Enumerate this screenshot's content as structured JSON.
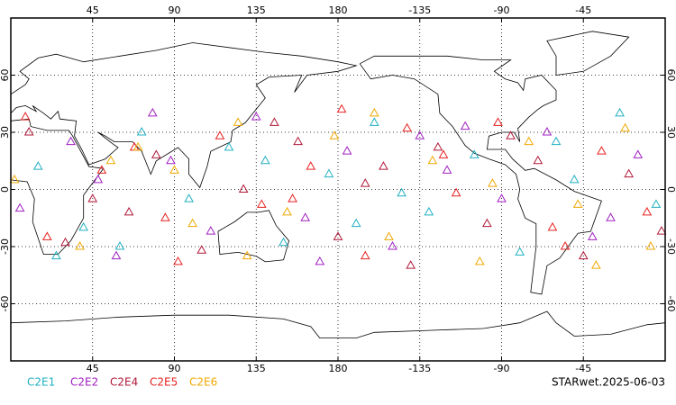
{
  "chart_data": {
    "type": "scatter",
    "xlim": [
      0,
      360
    ],
    "ylim": [
      -90,
      90
    ],
    "xticks": [
      45,
      90,
      135,
      180,
      {
        "value": 225,
        "label": "-135"
      },
      {
        "value": 270,
        "label": "-90"
      },
      {
        "value": 315,
        "label": "-45"
      }
    ],
    "yticks": [
      -60,
      -30,
      0,
      30,
      60
    ],
    "grid": true,
    "footer": "STARwet.2025-06-03",
    "series": [
      {
        "name": "C2E1",
        "color": "#20b0c0",
        "x": [
          15,
          40,
          72,
          98,
          120,
          150,
          175,
          200,
          230,
          255,
          280,
          310,
          335,
          355,
          60,
          140,
          215,
          300,
          25,
          190
        ],
        "y": [
          12,
          -20,
          30,
          -5,
          22,
          -28,
          8,
          35,
          -12,
          18,
          -33,
          5,
          40,
          -8,
          -30,
          15,
          -2,
          25,
          -35,
          -18
        ]
      },
      {
        "name": "C2E2",
        "color": "#a020c0",
        "x": [
          5,
          33,
          58,
          88,
          110,
          135,
          162,
          185,
          210,
          240,
          270,
          295,
          320,
          345,
          78,
          170,
          250,
          330,
          48,
          225
        ],
        "y": [
          -10,
          25,
          -35,
          15,
          -22,
          38,
          -15,
          20,
          -30,
          10,
          -5,
          30,
          -25,
          18,
          40,
          -38,
          33,
          -15,
          5,
          28
        ]
      },
      {
        "name": "C2E4",
        "color": "#b01838",
        "x": [
          10,
          45,
          80,
          105,
          128,
          158,
          180,
          205,
          235,
          262,
          290,
          315,
          340,
          358,
          65,
          145,
          220,
          275,
          30,
          195
        ],
        "y": [
          30,
          -5,
          18,
          -32,
          0,
          25,
          -25,
          12,
          22,
          -18,
          15,
          -35,
          8,
          -22,
          -12,
          35,
          -40,
          28,
          -28,
          3
        ]
      },
      {
        "name": "C2E5",
        "color": "#e82020",
        "x": [
          20,
          50,
          85,
          115,
          138,
          165,
          195,
          218,
          245,
          268,
          298,
          325,
          350,
          8,
          92,
          155,
          238,
          305,
          68,
          182
        ],
        "y": [
          -25,
          10,
          -15,
          28,
          -8,
          12,
          -35,
          32,
          -2,
          35,
          -20,
          20,
          -12,
          38,
          -38,
          -5,
          18,
          -30,
          22,
          42
        ]
      },
      {
        "name": "C2E6",
        "color": "#f0a800",
        "x": [
          2,
          38,
          70,
          100,
          125,
          152,
          178,
          208,
          232,
          258,
          285,
          312,
          338,
          352,
          55,
          130,
          200,
          265,
          322,
          90
        ],
        "y": [
          5,
          -30,
          22,
          -18,
          35,
          -12,
          28,
          -25,
          15,
          -38,
          25,
          -8,
          32,
          -30,
          15,
          -35,
          40,
          3,
          -40,
          10
        ]
      }
    ]
  }
}
